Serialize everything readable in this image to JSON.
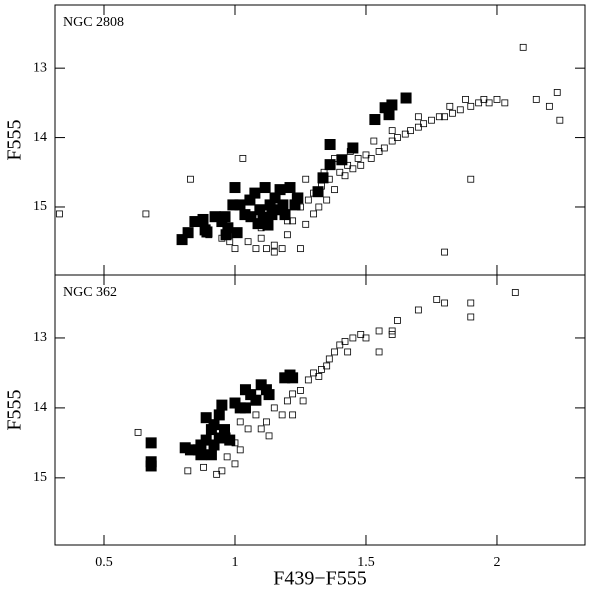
{
  "chart_data": [
    {
      "type": "scatter",
      "title": "NGC 2808",
      "ylabel": "F555",
      "show_xtick_labels": false,
      "xlim": [
        0.313,
        2.336
      ],
      "ylim": [
        15.98,
        12.09
      ],
      "xticks": [
        0.5,
        1,
        1.5,
        2
      ],
      "yticks": [
        13,
        14,
        15
      ],
      "series": [
        {
          "color": "#000000",
          "filled": true,
          "x": [
            0.798,
            0.821,
            0.878,
            0.893,
            0.924,
            0.95,
            0.973,
            1.0,
            1.019,
            1.038,
            1.057,
            1.076,
            1.095,
            1.115,
            1.134,
            1.153,
            1.172,
            1.191,
            1.21,
            1.229,
            1.008,
            1.088,
            1.126,
            0.886,
            1.363,
            1.336,
            1.363,
            1.408,
            1.45,
            1.317,
            1.534,
            1.588,
            1.599,
            1.653,
            1.573,
            0.962,
            0.992,
            1.107,
            1.164,
            1.24,
            0.847,
            0.966,
            1.061,
            1.183,
            1.141
          ],
          "values": [
            15.47,
            15.37,
            15.18,
            15.36,
            15.14,
            15.21,
            15.3,
            14.72,
            14.97,
            15.11,
            14.9,
            14.8,
            15.04,
            14.72,
            14.97,
            14.87,
            14.75,
            15.11,
            14.72,
            14.97,
            15.37,
            15.24,
            15.26,
            15.33,
            14.39,
            14.58,
            14.1,
            14.32,
            14.15,
            14.78,
            13.74,
            13.67,
            13.53,
            13.43,
            13.57,
            15.14,
            14.97,
            15.15,
            15.04,
            14.87,
            15.21,
            15.4,
            15.14,
            14.97,
            15.11
          ]
        },
        {
          "color": "#000000",
          "filled": false,
          "x": [
            0.33,
            0.66,
            0.83,
            1.03,
            0.98,
            1.0,
            1.05,
            1.08,
            1.1,
            1.12,
            1.15,
            1.18,
            1.2,
            1.22,
            1.25,
            1.27,
            1.28,
            1.3,
            1.3,
            1.32,
            1.33,
            1.35,
            1.36,
            1.38,
            1.4,
            1.42,
            1.43,
            1.45,
            1.47,
            1.48,
            1.5,
            1.52,
            1.55,
            1.57,
            1.6,
            1.62,
            1.65,
            1.67,
            1.7,
            1.72,
            1.75,
            1.78,
            1.8,
            1.83,
            1.86,
            1.9,
            1.93,
            1.95,
            1.97,
            2.0,
            2.03,
            2.1,
            2.15,
            2.2,
            2.23,
            2.24,
            1.9,
            1.8,
            1.15,
            1.25,
            1.1,
            1.2,
            1.27,
            1.34,
            1.23,
            1.38,
            1.44,
            1.53,
            1.6,
            1.7,
            1.82,
            1.88,
            0.9,
            0.95
          ],
          "values": [
            15.1,
            15.1,
            14.6,
            14.3,
            15.5,
            15.6,
            15.5,
            15.6,
            15.45,
            15.6,
            15.55,
            15.6,
            15.4,
            15.2,
            15.0,
            15.25,
            14.9,
            15.1,
            14.8,
            15.0,
            14.7,
            14.9,
            14.6,
            14.75,
            14.5,
            14.55,
            14.4,
            14.45,
            14.3,
            14.4,
            14.25,
            14.3,
            14.2,
            14.15,
            14.05,
            14.0,
            13.95,
            13.9,
            13.85,
            13.8,
            13.75,
            13.7,
            13.7,
            13.65,
            13.6,
            13.55,
            13.5,
            13.45,
            13.5,
            13.45,
            13.5,
            12.7,
            13.45,
            13.55,
            13.35,
            13.75,
            14.6,
            15.65,
            15.65,
            15.6,
            15.3,
            15.2,
            14.6,
            14.5,
            14.85,
            14.3,
            14.2,
            14.05,
            13.9,
            13.7,
            13.55,
            13.45,
            15.4,
            15.45
          ]
        }
      ]
    },
    {
      "type": "scatter",
      "title": "NGC 362",
      "ylabel": "F555",
      "xlabel": "F439−F555",
      "show_xtick_labels": true,
      "xlim": [
        0.313,
        2.336
      ],
      "ylim": [
        15.96,
        12.1
      ],
      "xticks": [
        0.5,
        1,
        1.5,
        2
      ],
      "yticks": [
        13,
        14,
        15
      ],
      "series": [
        {
          "color": "#000000",
          "filled": true,
          "x": [
            0.68,
            0.68,
            0.68,
            0.81,
            0.83,
            0.87,
            0.89,
            0.89,
            0.91,
            0.92,
            0.94,
            0.92,
            0.95,
            1.0,
            1.04,
            1.06,
            1.08,
            1.1,
            1.13,
            1.19,
            1.21,
            1.22,
            1.04,
            0.98,
            0.96,
            0.87,
            0.91,
            0.86,
            0.94,
            1.02,
            1.12
          ],
          "values": [
            14.5,
            14.77,
            14.83,
            14.57,
            14.6,
            14.53,
            14.46,
            14.14,
            14.31,
            14.24,
            14.43,
            14.53,
            13.96,
            13.93,
            13.74,
            13.81,
            13.89,
            13.67,
            13.81,
            13.57,
            13.53,
            13.57,
            14.0,
            14.46,
            14.31,
            14.67,
            14.67,
            14.6,
            14.1,
            14.0,
            13.74
          ]
        },
        {
          "color": "#000000",
          "filled": false,
          "x": [
            0.63,
            0.82,
            0.88,
            0.95,
            0.97,
            1.0,
            1.0,
            1.02,
            1.05,
            1.1,
            1.12,
            1.15,
            1.18,
            1.2,
            1.22,
            1.25,
            1.28,
            1.3,
            1.32,
            1.35,
            1.36,
            1.38,
            1.4,
            1.42,
            1.45,
            1.48,
            1.5,
            1.55,
            1.6,
            1.62,
            1.7,
            1.77,
            1.8,
            1.9,
            1.9,
            2.07,
            0.97,
            1.02,
            1.08,
            1.13,
            1.22,
            1.26,
            1.33,
            1.43,
            1.55,
            1.6,
            0.93
          ],
          "values": [
            14.35,
            14.9,
            14.85,
            14.9,
            14.7,
            14.8,
            14.5,
            14.6,
            14.3,
            14.3,
            14.2,
            14.0,
            14.1,
            13.9,
            13.8,
            13.75,
            13.6,
            13.5,
            13.55,
            13.4,
            13.3,
            13.2,
            13.1,
            13.05,
            13.0,
            12.95,
            13.0,
            12.9,
            12.9,
            12.75,
            12.6,
            12.45,
            12.5,
            12.5,
            12.7,
            12.35,
            14.4,
            14.2,
            14.1,
            14.4,
            14.1,
            13.9,
            13.45,
            13.2,
            13.2,
            12.95,
            14.95
          ]
        }
      ]
    }
  ]
}
